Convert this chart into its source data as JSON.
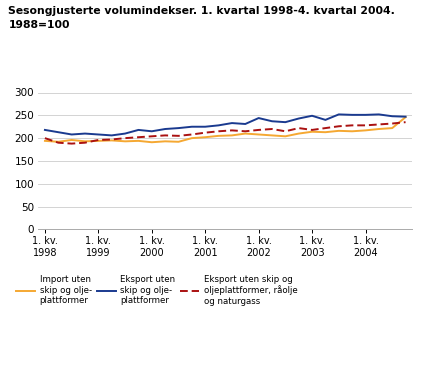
{
  "title1": "Sesongjusterte volumindekser. 1. kvartal 1998-4. kvartal 2004.",
  "title2": "1988=100",
  "ylim": [
    0,
    300
  ],
  "yticks": [
    0,
    50,
    100,
    150,
    200,
    250,
    300
  ],
  "xtick_labels": [
    "1. kv.\n1998",
    "1. kv.\n1999",
    "1. kv.\n2000",
    "1. kv.\n2001",
    "1. kv.\n2002",
    "1. kv.\n2003",
    "1. kv.\n2004"
  ],
  "xtick_positions": [
    0,
    4,
    8,
    12,
    16,
    20,
    24
  ],
  "import_color": "#f5a832",
  "export_color": "#1a3a8f",
  "export_ex_color": "#aa1111",
  "import_data": [
    194,
    192,
    196,
    193,
    194,
    195,
    193,
    194,
    191,
    193,
    192,
    200,
    202,
    205,
    206,
    210,
    208,
    206,
    204,
    210,
    214,
    213,
    216,
    215,
    217,
    220,
    222,
    246
  ],
  "export_data": [
    218,
    213,
    208,
    210,
    208,
    206,
    210,
    218,
    215,
    220,
    222,
    225,
    225,
    228,
    233,
    231,
    244,
    237,
    235,
    243,
    249,
    240,
    252,
    251,
    251,
    252,
    248,
    247
  ],
  "export_ex_data": [
    200,
    190,
    188,
    190,
    196,
    197,
    200,
    202,
    204,
    206,
    205,
    208,
    212,
    215,
    217,
    215,
    218,
    220,
    215,
    222,
    218,
    222,
    226,
    228,
    228,
    230,
    232,
    235
  ],
  "legend_labels": [
    "Import uten\nskip og olje-\nplattformer",
    "Eksport uten\nskip og olje-\nplattformer",
    "Eksport uten skip og\noljeplattformer, råolje\nog naturgass"
  ]
}
